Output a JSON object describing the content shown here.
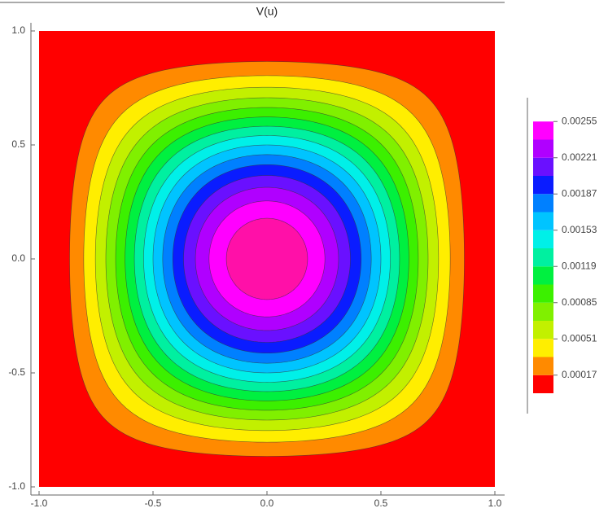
{
  "chart_data": {
    "type": "contour",
    "title": "V(u)",
    "xlim": [
      -1,
      1
    ],
    "ylim": [
      -1,
      1
    ],
    "xticks": [
      {
        "value": -1,
        "label": "-1.0"
      },
      {
        "value": -0.5,
        "label": "-0.5"
      },
      {
        "value": 0,
        "label": "0.0"
      },
      {
        "value": 0.5,
        "label": "0.5"
      },
      {
        "value": 1,
        "label": "1.0"
      }
    ],
    "yticks": [
      {
        "value": -1,
        "label": "-1.0"
      },
      {
        "value": -0.5,
        "label": "-0.5"
      },
      {
        "value": 0,
        "label": "0.0"
      },
      {
        "value": 0.5,
        "label": "0.5"
      },
      {
        "value": 1,
        "label": "1.0"
      }
    ],
    "zlim": [
      0,
      0.00272
    ],
    "levels": [
      0.00017,
      0.00034,
      0.00051,
      0.00068,
      0.00085,
      0.00102,
      0.00119,
      0.00136,
      0.00153,
      0.0017,
      0.00187,
      0.00204,
      0.00221,
      0.00238,
      0.00255
    ],
    "colors": [
      "#ff0000",
      "#ff8a00",
      "#ffee00",
      "#c2f000",
      "#80f000",
      "#3cf000",
      "#00f040",
      "#00f0a0",
      "#00f0e8",
      "#00c4ff",
      "#0080ff",
      "#0a1cff",
      "#6a10ff",
      "#b000ff",
      "#ff00ff",
      "#ff10a8",
      "#ff0000"
    ],
    "colorbar_ticks": [
      0.00017,
      0.00051,
      0.00085,
      0.00119,
      0.00153,
      0.00187,
      0.00221,
      0.00255
    ]
  }
}
